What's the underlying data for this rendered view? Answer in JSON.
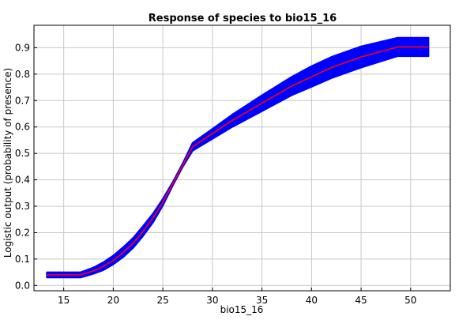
{
  "chart_data": {
    "type": "line",
    "title": "Response of species to bio15_16",
    "xlabel": "bio15_16",
    "ylabel": "Logistic output (probability of presence)",
    "xlim": [
      12,
      54
    ],
    "ylim": [
      -0.02,
      0.985
    ],
    "xticks": [
      15,
      20,
      25,
      30,
      35,
      40,
      45,
      50
    ],
    "yticks": [
      0.0,
      0.1,
      0.2,
      0.3,
      0.4,
      0.5,
      0.6,
      0.7,
      0.8,
      0.9
    ],
    "ytick_labels": [
      "0.0",
      "0.1",
      "0.2",
      "0.3",
      "0.4",
      "0.5",
      "0.6",
      "0.7",
      "0.8",
      "0.9"
    ],
    "grid": true,
    "series": [
      {
        "color": "#ff0000",
        "x": [
          13.3,
          16.7,
          18,
          19,
          20,
          21,
          22,
          23,
          24,
          25,
          26,
          27,
          28,
          30,
          32,
          35,
          38,
          40,
          42,
          45,
          48.7,
          51.8
        ],
        "y": [
          0.04,
          0.04,
          0.055,
          0.072,
          0.095,
          0.125,
          0.16,
          0.205,
          0.255,
          0.315,
          0.385,
          0.455,
          0.525,
          0.575,
          0.625,
          0.69,
          0.755,
          0.79,
          0.825,
          0.865,
          0.903,
          0.903
        ]
      }
    ],
    "band": {
      "color": "#0000ff",
      "x": [
        13.3,
        16.7,
        18,
        19,
        20,
        21,
        22,
        23,
        24,
        25,
        26,
        27,
        28,
        30,
        32,
        35,
        38,
        40,
        42,
        45,
        48.7,
        51.8
      ],
      "upper": [
        0.05,
        0.05,
        0.068,
        0.088,
        0.113,
        0.145,
        0.18,
        0.225,
        0.272,
        0.328,
        0.392,
        0.462,
        0.54,
        0.593,
        0.647,
        0.72,
        0.79,
        0.83,
        0.865,
        0.905,
        0.938,
        0.938
      ],
      "lower": [
        0.03,
        0.03,
        0.044,
        0.058,
        0.08,
        0.107,
        0.142,
        0.187,
        0.238,
        0.302,
        0.378,
        0.448,
        0.51,
        0.555,
        0.6,
        0.66,
        0.72,
        0.752,
        0.785,
        0.825,
        0.868,
        0.868
      ]
    }
  }
}
